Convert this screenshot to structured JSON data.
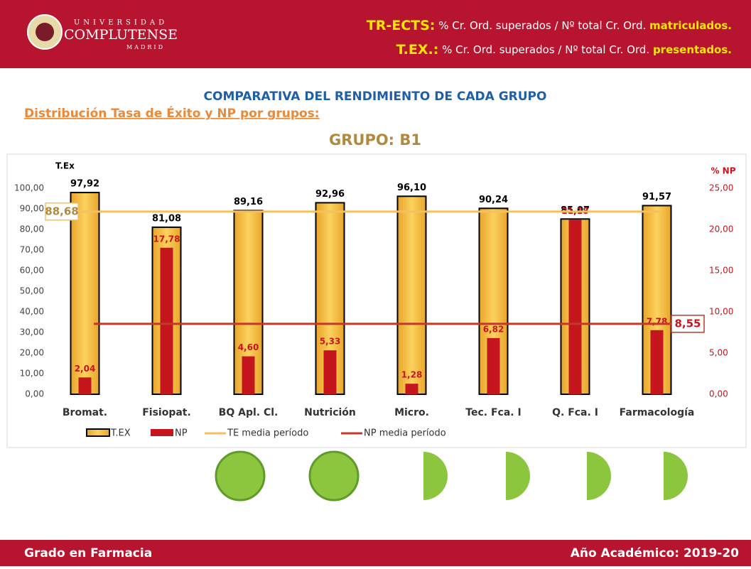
{
  "header": {
    "logo": [
      "UNIVERSIDAD",
      "COMPLUTENSE",
      "MADRID"
    ],
    "lines": [
      {
        "term": "TR-ECTS:",
        "text": "% Cr. Ord. superados / Nº total Cr. Ord.",
        "highlight": "matriculados."
      },
      {
        "term": "T.EX.:",
        "text": "% Cr. Ord. superados / Nº total Cr. Ord.",
        "highlight": "presentados."
      }
    ]
  },
  "heading": "COMPARATIVA DEL RENDIMIENTO DE CADA GRUPO",
  "subheading": "Distribución Tasa de Éxito y NP por grupos:",
  "chart_data": {
    "type": "bar",
    "title": "GRUPO: B1",
    "ylabel": "T.Ex",
    "y2label": "% NP",
    "categories": [
      "Bromat.",
      "Fisiopat.",
      "BQ Apl. Cl.",
      "Nutrición",
      "Micro.",
      "Tec. Fca. I",
      "Q. Fca. I",
      "Farmacología"
    ],
    "series": [
      {
        "name": "T.EX",
        "color": "#f2b530",
        "values": [
          97.92,
          81.08,
          89.16,
          92.96,
          96.1,
          90.24,
          85.07,
          91.57
        ],
        "value_labels": [
          "97,92",
          "81,08",
          "89,16",
          "92,96",
          "96,10",
          "90,24",
          "85,07",
          "91,57"
        ]
      },
      {
        "name": "NP",
        "color": "#c5161d",
        "axis": "y2",
        "values": [
          2.04,
          17.78,
          4.6,
          5.33,
          1.28,
          6.82,
          21.18,
          7.78
        ],
        "value_labels": [
          "2,04",
          "17,78",
          "4,60",
          "5,33",
          "1,28",
          "6,82",
          "21,18",
          "7,78"
        ]
      }
    ],
    "reference_lines": [
      {
        "name": "TE media período",
        "color": "#f5c060",
        "value": 88.68,
        "label": "88,68"
      },
      {
        "name": "NP media período",
        "color": "#c0392b",
        "axis": "y2",
        "value": 8.55,
        "label": "8,55"
      }
    ],
    "ylim": [
      0,
      100
    ],
    "yticks": [
      {
        "value": 0,
        "label": "0,00"
      },
      {
        "value": 10,
        "label": "10,00"
      },
      {
        "value": 20,
        "label": "20,00"
      },
      {
        "value": 30,
        "label": "30,00"
      },
      {
        "value": 40,
        "label": "40,00"
      },
      {
        "value": 50,
        "label": "50,00"
      },
      {
        "value": 60,
        "label": "60,00"
      },
      {
        "value": 70,
        "label": "70,00"
      },
      {
        "value": 80,
        "label": "80,00"
      },
      {
        "value": 90,
        "label": "90,00"
      },
      {
        "value": 100,
        "label": "100,00"
      }
    ],
    "y2lim": [
      0,
      25
    ],
    "y2ticks": [
      {
        "value": 0,
        "label": "0,00"
      },
      {
        "value": 5,
        "label": "5,00"
      },
      {
        "value": 10,
        "label": "10,00"
      },
      {
        "value": 15,
        "label": "15,00"
      },
      {
        "value": 20,
        "label": "20,00"
      },
      {
        "value": 25,
        "label": "25,00"
      }
    ]
  },
  "footer": {
    "left": "Grado en Farmacia",
    "right": "Año Académico: 2019-20"
  }
}
